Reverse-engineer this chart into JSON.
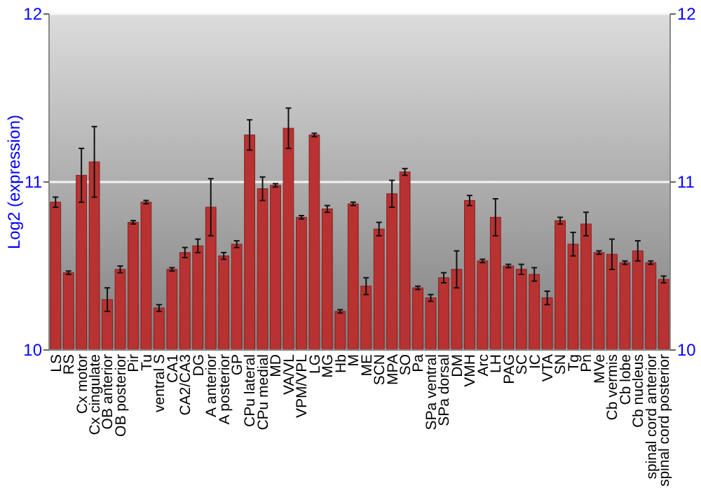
{
  "chart_data": {
    "type": "bar",
    "ylabel": "Log2 (expression)",
    "categories": [
      "LS",
      "RS",
      "Cx motor",
      "Cx cingulate",
      "OB anterior",
      "OB posterior",
      "Pir",
      "Tu",
      "ventral S",
      "CA1",
      "CA2/CA3",
      "DG",
      "A anterior",
      "A posterior",
      "GP",
      "CPu lateral",
      "CPu medial",
      "MD",
      "VA/VL",
      "VPM/VPL",
      "LG",
      "MG",
      "Hb",
      "M",
      "ME",
      "SCN",
      "MPA",
      "SO",
      "Pa",
      "SPa ventral",
      "SPa dorsal",
      "DM",
      "VMH",
      "Arc",
      "LH",
      "PAG",
      "SC",
      "IC",
      "VTA",
      "SN",
      "Tg",
      "Pn",
      "MVe",
      "Cb vermis",
      "Cb lobe",
      "Cb nucleus",
      "spinal cord anterior",
      "spinal cord posterior"
    ],
    "values": [
      10.88,
      10.46,
      11.04,
      11.12,
      10.3,
      10.48,
      10.76,
      10.88,
      10.25,
      10.48,
      10.58,
      10.62,
      10.85,
      10.56,
      10.63,
      11.28,
      10.96,
      10.98,
      11.32,
      10.79,
      11.28,
      10.84,
      10.23,
      10.87,
      10.38,
      10.72,
      10.93,
      11.06,
      10.37,
      10.31,
      10.43,
      10.48,
      10.89,
      10.53,
      10.79,
      10.5,
      10.48,
      10.45,
      10.31,
      10.77,
      10.63,
      10.75,
      10.58,
      10.57,
      10.52,
      10.59,
      10.52,
      10.42
    ],
    "errors": [
      0.03,
      0.01,
      0.16,
      0.21,
      0.07,
      0.02,
      0.01,
      0.01,
      0.02,
      0.01,
      0.03,
      0.04,
      0.17,
      0.02,
      0.02,
      0.09,
      0.07,
      0.01,
      0.12,
      0.01,
      0.01,
      0.02,
      0.01,
      0.01,
      0.05,
      0.04,
      0.08,
      0.02,
      0.01,
      0.02,
      0.03,
      0.11,
      0.03,
      0.01,
      0.11,
      0.01,
      0.03,
      0.04,
      0.04,
      0.02,
      0.07,
      0.07,
      0.01,
      0.09,
      0.01,
      0.06,
      0.01,
      0.02
    ],
    "color": "#b83232",
    "ylim": [
      10,
      12
    ],
    "yticks": [
      10,
      11,
      12
    ],
    "y2lim": [
      10,
      12
    ],
    "y2ticks": [
      10,
      11,
      12
    ],
    "grid": "y"
  }
}
